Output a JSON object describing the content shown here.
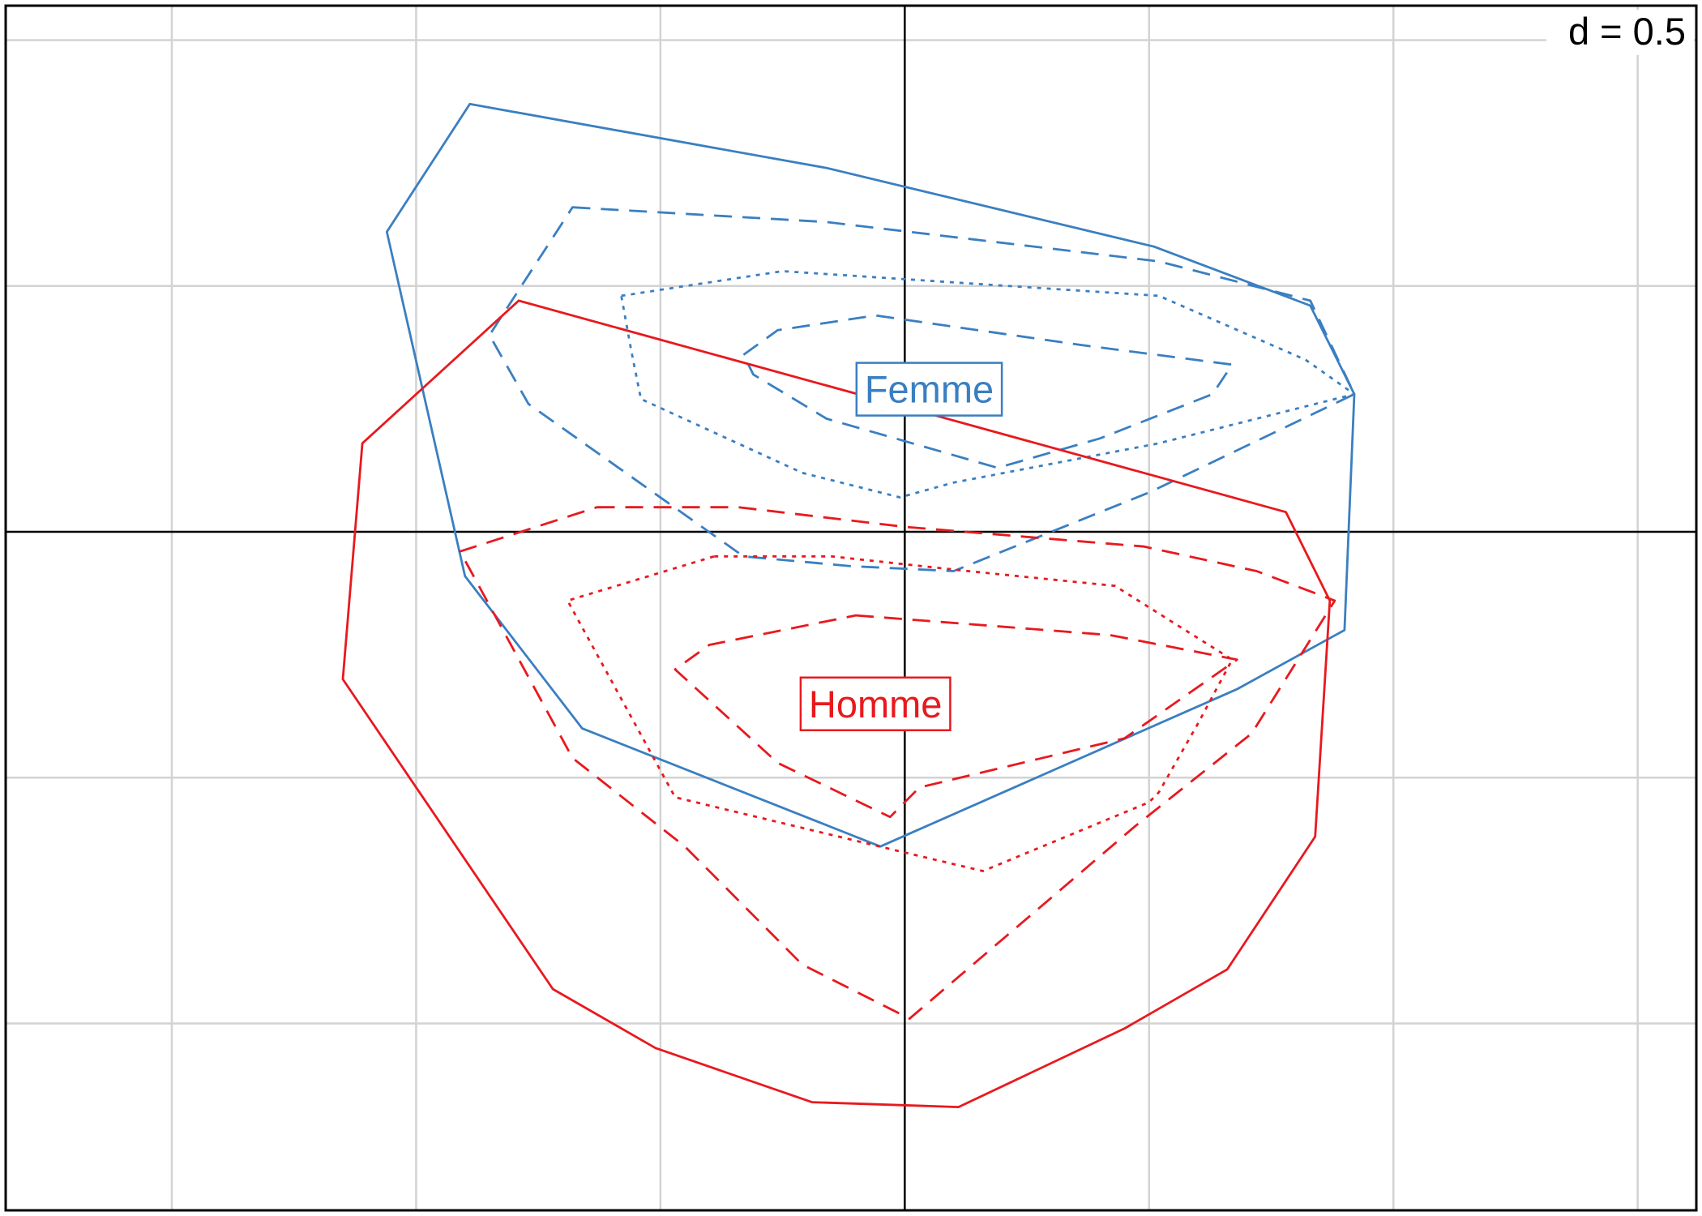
{
  "chart_data": {
    "type": "scatter",
    "title": "",
    "xlabel": "",
    "ylabel": "",
    "xlim": [
      -1.84,
      1.62
    ],
    "ylim": [
      -1.38,
      1.07
    ],
    "grid": true,
    "grid_step": 0.5,
    "d_scale_label": "d = 0.5",
    "colors": {
      "Femme": "#3a7fc1",
      "Homme": "#e8191e"
    },
    "groups": [
      {
        "label": "Femme",
        "label_position": [
          0.05,
          0.29
        ],
        "contours": [
          {
            "style": "solid",
            "points": [
              [
                -0.89,
                0.87
              ],
              [
                -0.16,
                0.74
              ],
              [
                0.51,
                0.58
              ],
              [
                0.83,
                0.46
              ],
              [
                0.92,
                0.28
              ],
              [
                0.9,
                -0.2
              ],
              [
                0.68,
                -0.32
              ],
              [
                -0.05,
                -0.64
              ],
              [
                -0.66,
                -0.4
              ],
              [
                -0.9,
                -0.09
              ],
              [
                -1.06,
                0.61
              ]
            ]
          },
          {
            "style": "dashed",
            "points": [
              [
                -0.68,
                0.66
              ],
              [
                -0.16,
                0.63
              ],
              [
                0.52,
                0.55
              ],
              [
                0.83,
                0.47
              ],
              [
                0.92,
                0.28
              ],
              [
                0.5,
                0.08
              ],
              [
                0.1,
                -0.08
              ],
              [
                -0.11,
                -0.07
              ],
              [
                -0.33,
                -0.05
              ],
              [
                -0.77,
                0.26
              ],
              [
                -0.85,
                0.4
              ]
            ]
          },
          {
            "style": "dotted",
            "points": [
              [
                -0.58,
                0.48
              ],
              [
                -0.25,
                0.53
              ],
              [
                0.52,
                0.48
              ],
              [
                0.82,
                0.35
              ],
              [
                0.92,
                0.28
              ],
              [
                0.52,
                0.18
              ],
              [
                0.1,
                0.1
              ],
              [
                -0.01,
                0.07
              ],
              [
                -0.21,
                0.12
              ],
              [
                -0.54,
                0.27
              ],
              [
                -0.56,
                0.37
              ]
            ]
          },
          {
            "style": "dashed",
            "points": [
              [
                -0.33,
                0.36
              ],
              [
                -0.26,
                0.41
              ],
              [
                -0.06,
                0.44
              ],
              [
                0.36,
                0.38
              ],
              [
                0.67,
                0.34
              ],
              [
                0.63,
                0.28
              ],
              [
                0.4,
                0.19
              ],
              [
                0.19,
                0.13
              ],
              [
                -0.02,
                0.19
              ],
              [
                -0.16,
                0.23
              ],
              [
                -0.31,
                0.32
              ]
            ]
          }
        ]
      },
      {
        "label": "Homme",
        "label_position": [
          -0.06,
          -0.35
        ],
        "contours": [
          {
            "style": "solid",
            "points": [
              [
                -0.79,
                0.47
              ],
              [
                0.78,
                0.04
              ],
              [
                0.87,
                -0.14
              ],
              [
                0.84,
                -0.62
              ],
              [
                0.66,
                -0.89
              ],
              [
                0.45,
                -1.01
              ],
              [
                0.11,
                -1.17
              ],
              [
                -0.19,
                -1.16
              ],
              [
                -0.51,
                -1.05
              ],
              [
                -0.72,
                -0.93
              ],
              [
                -1.15,
                -0.3
              ],
              [
                -1.11,
                0.18
              ]
            ]
          },
          {
            "style": "dashed",
            "points": [
              [
                -0.63,
                0.05
              ],
              [
                -0.34,
                0.05
              ],
              [
                0.0,
                0.01
              ],
              [
                0.49,
                -0.03
              ],
              [
                0.72,
                -0.08
              ],
              [
                0.88,
                -0.14
              ],
              [
                0.71,
                -0.41
              ],
              [
                0.47,
                -0.6
              ],
              [
                0.01,
                -0.99
              ],
              [
                -0.21,
                -0.88
              ],
              [
                -0.45,
                -0.64
              ],
              [
                -0.68,
                -0.46
              ],
              [
                -0.91,
                -0.04
              ]
            ]
          },
          {
            "style": "dotted",
            "points": [
              [
                -0.39,
                -0.05
              ],
              [
                -0.15,
                -0.05
              ],
              [
                0.13,
                -0.08
              ],
              [
                0.43,
                -0.11
              ],
              [
                0.67,
                -0.26
              ],
              [
                0.6,
                -0.39
              ],
              [
                0.52,
                -0.53
              ],
              [
                0.5,
                -0.55
              ],
              [
                0.16,
                -0.69
              ],
              [
                -0.01,
                -0.65
              ],
              [
                -0.47,
                -0.54
              ],
              [
                -0.69,
                -0.14
              ]
            ]
          },
          {
            "style": "dashed",
            "points": [
              [
                -0.1,
                -0.17
              ],
              [
                0.16,
                -0.19
              ],
              [
                0.42,
                -0.21
              ],
              [
                0.68,
                -0.26
              ],
              [
                0.45,
                -0.42
              ],
              [
                0.03,
                -0.52
              ],
              [
                -0.03,
                -0.58
              ],
              [
                -0.26,
                -0.47
              ],
              [
                -0.47,
                -0.28
              ],
              [
                -0.4,
                -0.23
              ]
            ]
          }
        ]
      }
    ]
  }
}
